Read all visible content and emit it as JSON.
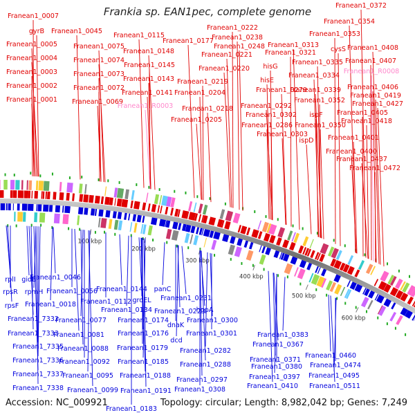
{
  "title": "Frankia sp. EAN1pec, complete genome",
  "accession": "Accession: NC_009921",
  "summary": "Topology: circular; Length: 8,982,042 bp; Genes: 7,249",
  "colors": {
    "forward": "#e00000",
    "reverse": "#0000dd",
    "rna": "#ff88cc",
    "axis": "#8a8a8a",
    "tick": "#22aa22"
  },
  "ticks": [
    "100 kbp",
    "200 kbp",
    "300 kbp",
    "400 kbp",
    "500 kbp",
    "600 kbp"
  ],
  "forward_labels": [
    "Franean1_0007",
    "gyrB",
    "Franean1_0045",
    "Franean1_0005",
    "Franean1_0004",
    "Franean1_0003",
    "Franean1_0002",
    "Franean1_0001",
    "Franean1_0075",
    "Franean1_0074",
    "Franean1_0073",
    "Franean1_0072",
    "Franean1_0069",
    "Franean1_0115",
    "Franean1_0148",
    "Franean1_0145",
    "Franean1_0143",
    "Franean1_0141",
    "Franean1_R0003",
    "Franean1_0177",
    "Franean1_0222",
    "Franean1_0238",
    "Franean1_0248",
    "Franean1_0221",
    "Franean1_0220",
    "Franean1_0219",
    "Franean1_0204",
    "Franean1_0218",
    "Franean1_0205",
    "Franean1_0313",
    "Franean1_0321",
    "hisG",
    "hisE",
    "Franean1_0279",
    "Franean1_0292",
    "Franean1_0302",
    "Franean1_0286",
    "Franean1_0303",
    "Franean1_0372",
    "Franean1_0354",
    "Franean1_0353",
    "cysS",
    "Franean1_0335",
    "Franean1_0334",
    "Franean1_0339",
    "Franean1_0352",
    "ispF",
    "Franean1_0350",
    "ispD",
    "Franean1_0408",
    "Franean1_0407",
    "Franean1_R0008",
    "Franean1_0406",
    "Franean1_0419",
    "Franean1_0427",
    "Franean1_0405",
    "Franean1_0418",
    "Franean1_0401",
    "Franean1_0400",
    "Franean1_0437",
    "Franean1_0472"
  ],
  "reverse_labels": [
    "rplI",
    "gidB",
    "rpsR",
    "rpmH",
    "rpsF",
    "Franean1_0046",
    "Franean1_0056",
    "Franean1_0018",
    "Franean1_7332",
    "Franean1_7333",
    "Franean1_7335",
    "Franean1_7336",
    "Franean1_7337",
    "Franean1_7338",
    "Franean1_0112",
    "Franean1_0077",
    "Franean1_0081",
    "Franean1_0088",
    "Franean1_0092",
    "Franean1_0095",
    "Franean1_0099",
    "Franean1_0144",
    "groEL",
    "Franean1_0134",
    "Franean1_0174",
    "Franean1_0176",
    "Franean1_0179",
    "Franean1_0185",
    "Franean1_0188",
    "Franean1_0191",
    "Franean1_0183",
    "panC",
    "Franean1_0231",
    "Franean1_0223",
    "dnaK",
    "dcd",
    "hppA",
    "Franean1_0300",
    "Franean1_0301",
    "Franean1_0282",
    "Franean1_0288",
    "Franean1_0297",
    "Franean1_0308",
    "Franean1_0383",
    "Franean1_0367",
    "Franean1_0371",
    "Franean1_0380",
    "Franean1_0397",
    "Franean1_0410",
    "Franean1_0460",
    "Franean1_0474",
    "Franean1_0495",
    "Franean1_0511"
  ]
}
